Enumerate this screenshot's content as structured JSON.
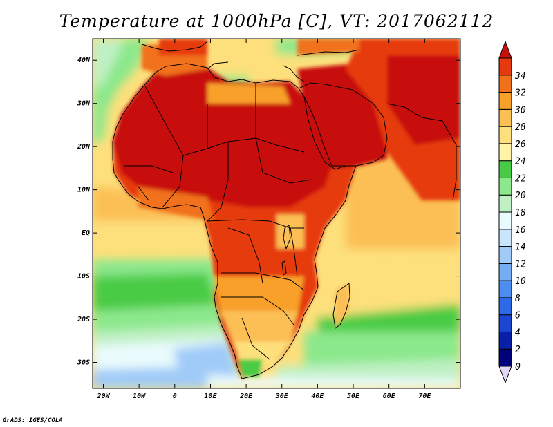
{
  "title": "Temperature at 1000hPa [C], VT: 2017062112",
  "credit": "GrADS: IGES/COLA",
  "axes": {
    "lat_labels": [
      "40N",
      "30N",
      "20N",
      "10N",
      "EQ",
      "10S",
      "20S",
      "30S"
    ],
    "lat_values": [
      40,
      30,
      20,
      10,
      0,
      -10,
      -20,
      -30
    ],
    "lon_labels": [
      "20W",
      "10W",
      "0",
      "10E",
      "20E",
      "30E",
      "40E",
      "50E",
      "60E",
      "70E"
    ],
    "lon_values": [
      -20,
      -10,
      0,
      10,
      20,
      30,
      40,
      50,
      60,
      70
    ],
    "lon_range": [
      -23,
      80
    ],
    "lat_range": [
      -36,
      45
    ]
  },
  "colorbar": {
    "labels": [
      "0",
      "2",
      "4",
      "6",
      "8",
      "10",
      "12",
      "14",
      "16",
      "18",
      "20",
      "22",
      "24",
      "26",
      "28",
      "30",
      "32",
      "34"
    ],
    "colors": [
      "#00007a",
      "#0a1fa8",
      "#1a46d2",
      "#2d6ae8",
      "#4c8ef0",
      "#75adf5",
      "#a0cbf8",
      "#c9e5fb",
      "#eafbfd",
      "#bff0c4",
      "#8ce88c",
      "#48cb44",
      "#fff4a6",
      "#fde07c",
      "#fbbf54",
      "#f8a02a",
      "#f1711b",
      "#e63a0e",
      "#c8100a"
    ]
  }
}
